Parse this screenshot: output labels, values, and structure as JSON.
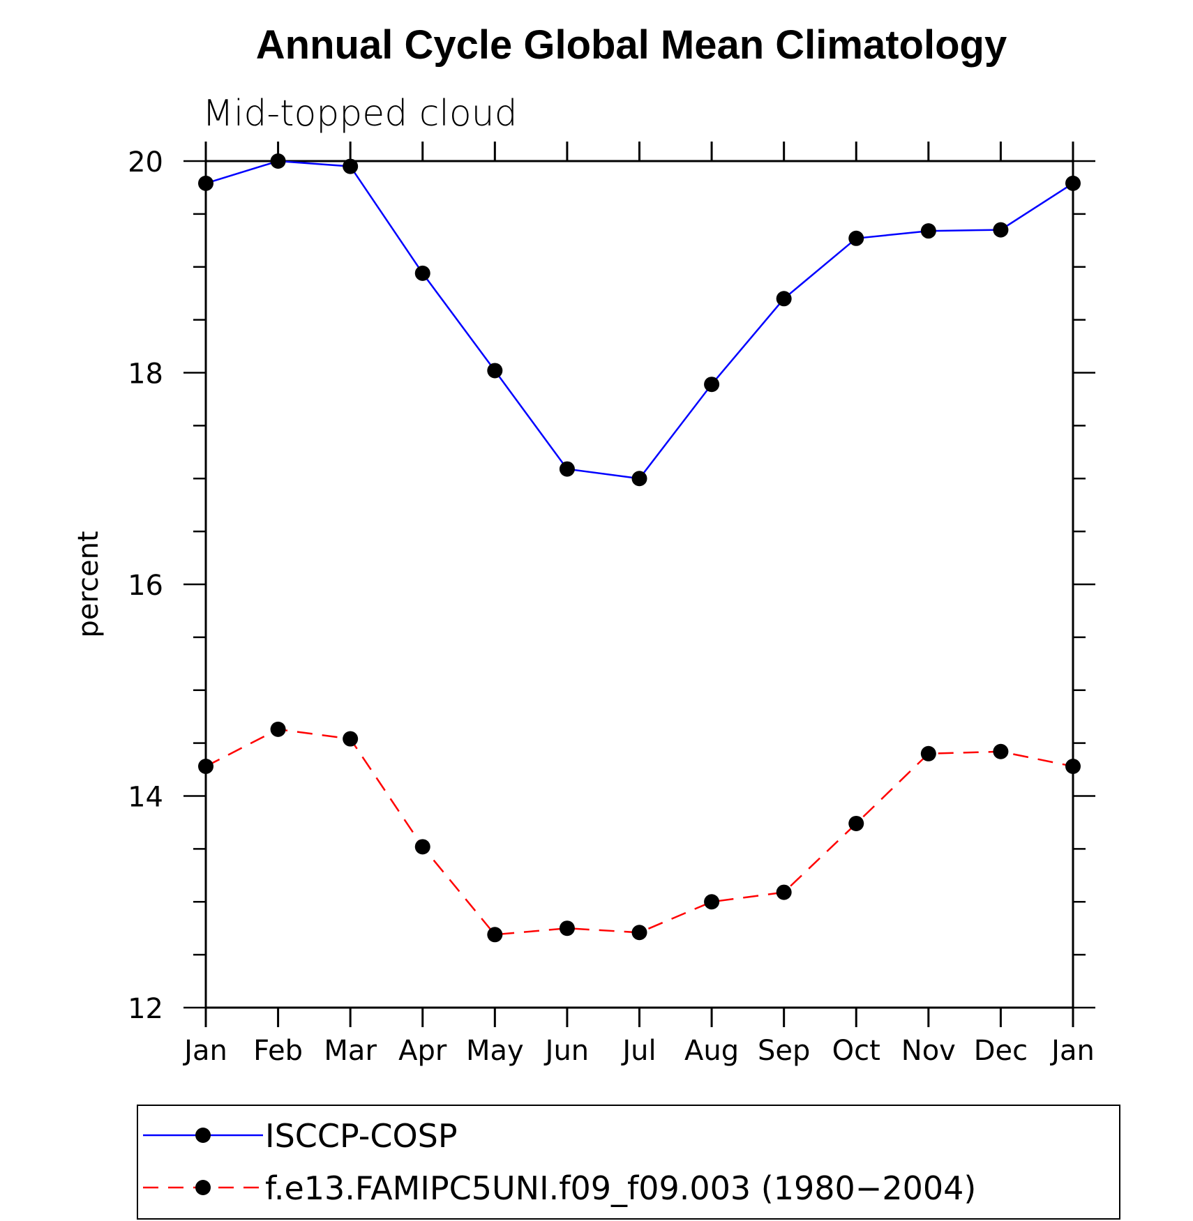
{
  "chart_data": {
    "type": "line",
    "title": "Annual Cycle Global Mean Climatology",
    "subtitle": "Mid-topped cloud",
    "xlabel": "",
    "ylabel": "percent",
    "categories": [
      "Jan",
      "Feb",
      "Mar",
      "Apr",
      "May",
      "Jun",
      "Jul",
      "Aug",
      "Sep",
      "Oct",
      "Nov",
      "Dec",
      "Jan"
    ],
    "ylim": [
      12,
      20
    ],
    "yticks": [
      "12",
      "14",
      "16",
      "18",
      "20"
    ],
    "series": [
      {
        "name": "ISCCP-COSP",
        "color": "#0000ff",
        "style": "solid",
        "marker": "circle",
        "values": [
          19.79,
          20.0,
          19.95,
          18.94,
          18.02,
          17.09,
          17.0,
          17.89,
          18.7,
          19.27,
          19.34,
          19.35,
          19.79
        ]
      },
      {
        "name": "f.e13.FAMIPC5UNI.f09_f09.003 (1980−2004)",
        "color": "#ff0000",
        "style": "dashed",
        "marker": "circle",
        "values": [
          14.28,
          14.63,
          14.54,
          13.52,
          12.69,
          12.75,
          12.71,
          13.0,
          13.09,
          13.74,
          14.4,
          14.42,
          14.28
        ]
      }
    ]
  }
}
